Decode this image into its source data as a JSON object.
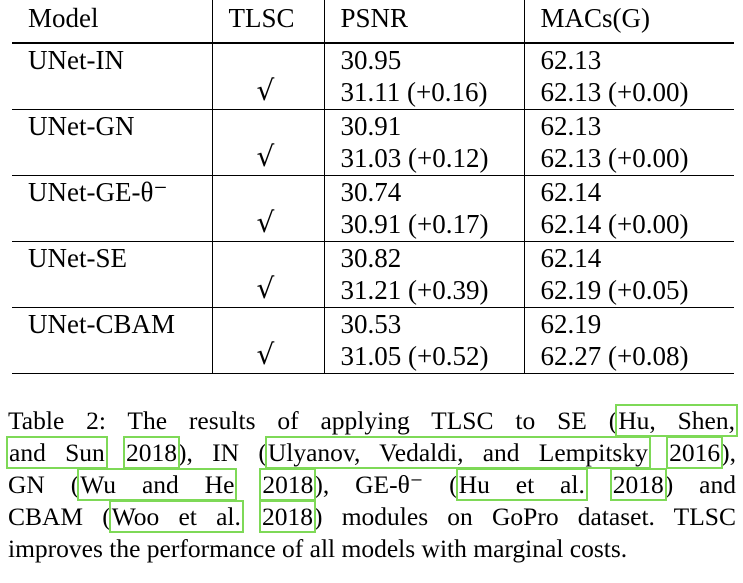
{
  "table": {
    "headers": [
      "Model",
      "TLSC",
      "PSNR",
      "MACs(G)"
    ],
    "check_mark": "√",
    "rows": [
      {
        "model": "UNet-IN",
        "psnr": [
          "30.95",
          "31.11 (+0.16)"
        ],
        "macs": [
          "62.13",
          "62.13 (+0.00)"
        ]
      },
      {
        "model": "UNet-GN",
        "psnr": [
          "30.91",
          "31.03 (+0.12)"
        ],
        "macs": [
          "62.13",
          "62.13 (+0.00)"
        ]
      },
      {
        "model": "UNet-GE-θ⁻",
        "psnr": [
          "30.74",
          "30.91 (+0.17)"
        ],
        "macs": [
          "62.14",
          "62.14 (+0.00)"
        ]
      },
      {
        "model": "UNet-SE",
        "psnr": [
          "30.82",
          "31.21 (+0.39)"
        ],
        "macs": [
          "62.14",
          "62.19 (+0.05)"
        ]
      },
      {
        "model": "UNet-CBAM",
        "psnr": [
          "30.53",
          "31.05 (+0.52)"
        ],
        "macs": [
          "62.19",
          "62.27 (+0.08)"
        ]
      }
    ]
  },
  "caption": {
    "prefix": "Table 2: The results of applying TLSC to SE (",
    "cite_hu_1": "Hu, Shen,",
    "cite_hu_2": "and Sun",
    "year_hu": "2018",
    "text_in": "), IN (",
    "cite_ulyanov": "Ulyanov, Vedaldi, and Lempitsky",
    "year_ulyanov": "2016",
    "text_gn": "),",
    "text_gn2": "GN (",
    "cite_wu": "Wu and He",
    "year_wu": "2018",
    "text_ge": "), GE-θ⁻ (",
    "cite_hu_3": "Hu et al.",
    "year_hu_3": "2018",
    "text_and": ") and",
    "text_cbam": "CBAM (",
    "cite_woo": "Woo et al.",
    "year_woo": "2018",
    "text_end": ") modules on GoPro dataset. TLSC",
    "last_line": "improves the performance of all models with marginal costs."
  }
}
